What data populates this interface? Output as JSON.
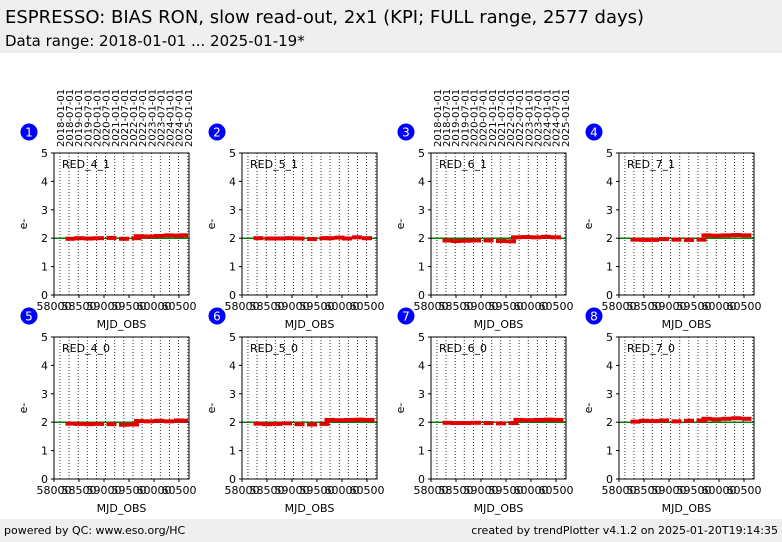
{
  "header": {
    "title": "ESPRESSO: BIAS RON, slow read-out, 2x1 (KPI; FULL range, 2577 days)",
    "subtitle": "Data range: 2018-01-01 ... 2025-01-19*"
  },
  "footer": {
    "left": "powered by QC: www.eso.org/HC",
    "right": "created by trendPlotter v4.1.2 on 2025-01-20T19:14:35"
  },
  "colors": {
    "reference_line": "#008000",
    "data_points": "#e00000",
    "panel_badge": "#0000ff",
    "grid": "#000000"
  },
  "chart_data": {
    "type": "scatter",
    "xlabel": "MJD_OBS",
    "ylabel": "e-",
    "xlim": [
      58000,
      60700
    ],
    "ylim": [
      0,
      5
    ],
    "x_ticks": [
      58000,
      58500,
      59000,
      59500,
      60000,
      60500
    ],
    "x_tick_labels": [
      "58000",
      "58500",
      "59000",
      "59500",
      "60000",
      "60500"
    ],
    "y_ticks": [
      0,
      1,
      2,
      3,
      4,
      5
    ],
    "y_tick_labels": [
      "0",
      "1",
      "2",
      "3",
      "4",
      "5"
    ],
    "date_ticks": [
      "2018-01-01",
      "2018-07-01",
      "2019-01-01",
      "2019-07-01",
      "2020-01-01",
      "2020-07-01",
      "2021-01-01",
      "2021-07-01",
      "2022-01-01",
      "2022-07-01",
      "2023-01-01",
      "2023-07-01",
      "2024-01-01",
      "2024-07-01",
      "2025-01-01"
    ],
    "date_tick_mjd": [
      58119,
      58300,
      58484,
      58665,
      58849,
      59031,
      59215,
      59396,
      59580,
      59761,
      59945,
      60126,
      60310,
      60492,
      60676
    ],
    "reference_value": 2.0,
    "grid": "vertical dotted at date ticks",
    "panels": [
      {
        "badge": "1",
        "label": "RED_4_1",
        "show_dates": true,
        "series": [
          {
            "x": [
              58330,
              58500,
              58700,
              58900,
              59150,
              59400,
              59650,
              59700,
              59900,
              60100,
              60300,
              60500,
              60580
            ],
            "y": [
              1.98,
              2.0,
              1.99,
              2.0,
              2.01,
              1.98,
              2.0,
              2.07,
              2.06,
              2.08,
              2.1,
              2.09,
              2.1
            ]
          }
        ]
      },
      {
        "badge": "2",
        "label": "RED_5_1",
        "show_dates": false,
        "series": [
          {
            "x": [
              58330,
              58550,
              58750,
              58950,
              59150,
              59400,
              59650,
              59750,
              59950,
              60100,
              60300,
              60500
            ],
            "y": [
              2.0,
              1.99,
              1.99,
              2.0,
              1.99,
              1.97,
              2.0,
              2.0,
              2.02,
              1.99,
              2.03,
              2.0
            ]
          }
        ]
      },
      {
        "badge": "3",
        "label": "RED_6_1",
        "show_dates": true,
        "series": [
          {
            "x": [
              58330,
              58500,
              58700,
              58900,
              59150,
              59400,
              59600,
              59700,
              59900,
              60100,
              60300,
              60500
            ],
            "y": [
              1.92,
              1.9,
              1.91,
              1.92,
              1.92,
              1.9,
              1.89,
              2.03,
              2.04,
              2.03,
              2.05,
              2.03
            ]
          }
        ]
      },
      {
        "badge": "4",
        "label": "RED_7_1",
        "show_dates": false,
        "series": [
          {
            "x": [
              58330,
              58500,
              58700,
              58900,
              59150,
              59400,
              59650,
              59750,
              59950,
              60150,
              60350,
              60550
            ],
            "y": [
              1.95,
              1.94,
              1.94,
              1.97,
              1.95,
              1.94,
              1.95,
              2.1,
              2.09,
              2.1,
              2.11,
              2.1
            ]
          }
        ]
      },
      {
        "badge": "5",
        "label": "RED_4_0",
        "show_dates": false,
        "series": [
          {
            "x": [
              58330,
              58500,
              58700,
              58900,
              59150,
              59400,
              59600,
              59700,
              59900,
              60100,
              60300,
              60500,
              60580
            ],
            "y": [
              1.95,
              1.94,
              1.93,
              1.94,
              1.93,
              1.91,
              1.92,
              2.04,
              2.03,
              2.05,
              2.03,
              2.06,
              2.05
            ]
          }
        ]
      },
      {
        "badge": "6",
        "label": "RED_5_0",
        "show_dates": false,
        "series": [
          {
            "x": [
              58330,
              58500,
              58700,
              58900,
              59150,
              59400,
              59650,
              59750,
              59950,
              60150,
              60350,
              60550
            ],
            "y": [
              1.95,
              1.93,
              1.94,
              1.96,
              1.93,
              1.92,
              1.94,
              2.08,
              2.07,
              2.08,
              2.09,
              2.08
            ]
          }
        ]
      },
      {
        "badge": "7",
        "label": "RED_6_0",
        "show_dates": false,
        "series": [
          {
            "x": [
              58330,
              58500,
              58700,
              58900,
              59150,
              59400,
              59650,
              59750,
              59950,
              60150,
              60350,
              60550
            ],
            "y": [
              1.98,
              1.97,
              1.97,
              1.98,
              1.97,
              1.96,
              1.97,
              2.08,
              2.07,
              2.08,
              2.09,
              2.08
            ]
          }
        ]
      },
      {
        "badge": "8",
        "label": "RED_7_0",
        "show_dates": false,
        "series": [
          {
            "x": [
              58330,
              58500,
              58700,
              58900,
              59150,
              59400,
              59650,
              59750,
              59950,
              60150,
              60350,
              60550
            ],
            "y": [
              2.02,
              2.05,
              2.04,
              2.06,
              2.03,
              2.05,
              2.06,
              2.12,
              2.1,
              2.12,
              2.14,
              2.12
            ]
          }
        ]
      }
    ]
  }
}
